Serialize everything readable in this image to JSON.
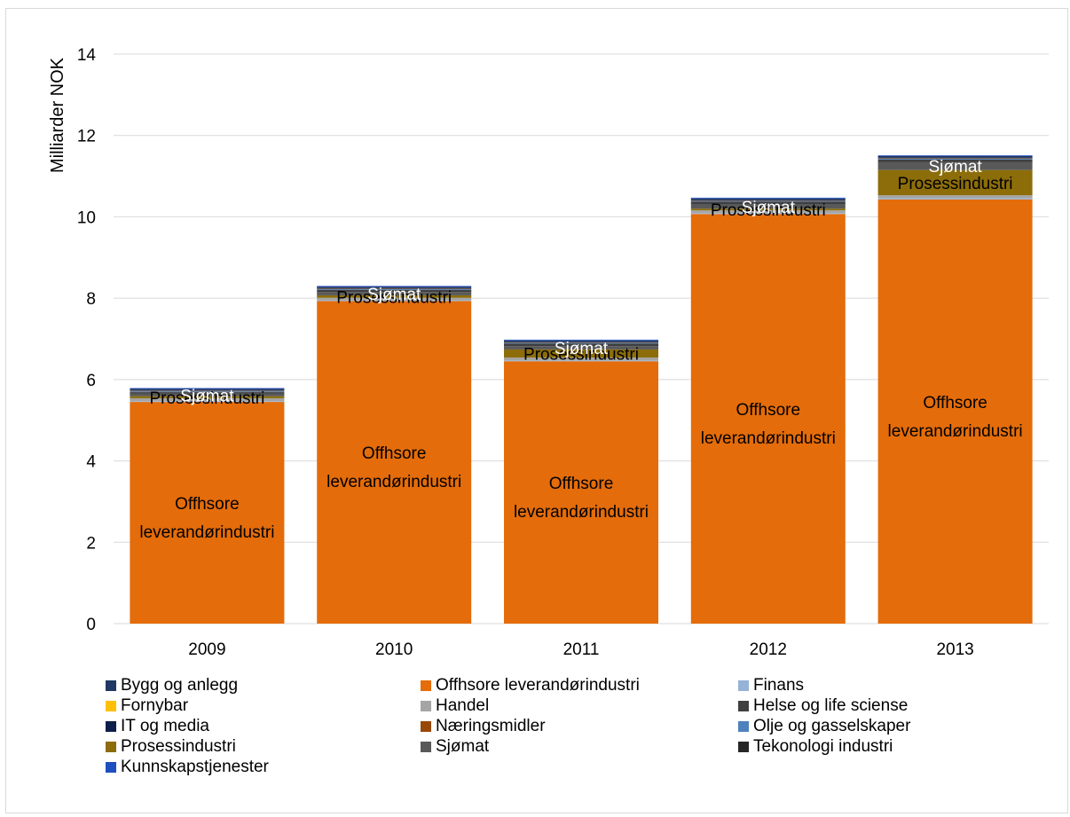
{
  "chart_data": {
    "type": "bar",
    "stacked": true,
    "ylabel": "Milliarder NOK",
    "xlabel": "",
    "ylim": [
      0,
      14
    ],
    "yticks": [
      0,
      2,
      4,
      6,
      8,
      10,
      12,
      14
    ],
    "grid": true,
    "legend_position": "bottom",
    "categories": [
      "2009",
      "2010",
      "2011",
      "2012",
      "2013"
    ],
    "series": [
      {
        "name": "Offhsore leverandørindustri",
        "color": "#e46c0a",
        "values": [
          5.45,
          7.93,
          6.45,
          10.07,
          10.43
        ]
      },
      {
        "name": "Finans",
        "color": "#95b3d7",
        "values": [
          0.02,
          0.02,
          0.02,
          0.02,
          0.03
        ]
      },
      {
        "name": "Handel",
        "color": "#a5a5a5",
        "values": [
          0.07,
          0.06,
          0.07,
          0.07,
          0.07
        ]
      },
      {
        "name": "Prosessindustri",
        "color": "#8c6d0a",
        "values": [
          0.05,
          0.06,
          0.2,
          0.04,
          0.62
        ]
      },
      {
        "name": "Sjømat",
        "color": "#595959",
        "values": [
          0.06,
          0.08,
          0.08,
          0.1,
          0.2
        ]
      },
      {
        "name": "Helse og life sciense",
        "color": "#3f3f3f",
        "values": [
          0.04,
          0.05,
          0.06,
          0.07,
          0.06
        ]
      },
      {
        "name": "Olje og gasselskaper",
        "color": "#4f81bd",
        "values": [
          0.02,
          0.02,
          0.02,
          0.02,
          0.02
        ]
      },
      {
        "name": "Næringsmidler",
        "color": "#984807",
        "values": [
          0.01,
          0.01,
          0.01,
          0.01,
          0.01
        ]
      },
      {
        "name": "Tekonologi industri",
        "color": "#262626",
        "values": [
          0.01,
          0.01,
          0.01,
          0.01,
          0.01
        ]
      },
      {
        "name": "Bygg og anlegg",
        "color": "#1f3864",
        "values": [
          0.02,
          0.02,
          0.02,
          0.02,
          0.02
        ]
      },
      {
        "name": "IT og media",
        "color": "#0d1f4a",
        "values": [
          0.02,
          0.02,
          0.02,
          0.02,
          0.02
        ]
      },
      {
        "name": "Kunnskapstjenester",
        "color": "#1f4fbf",
        "values": [
          0.02,
          0.02,
          0.02,
          0.02,
          0.02
        ]
      },
      {
        "name": "Fornybar",
        "color": "#ffc000",
        "values": [
          0,
          0,
          0,
          0,
          0
        ]
      }
    ],
    "data_labels": [
      {
        "series": "Offhsore leverandørindustri",
        "text_line1": "Offhsore",
        "text_line2": "leverandørindustri",
        "color": "#000000"
      },
      {
        "series": "Prosessindustri",
        "text": "Prosessindustri",
        "color": "#000000"
      },
      {
        "series": "Sjømat",
        "text": "Sjømat",
        "color": "#ffffff"
      }
    ],
    "legend": [
      "Bygg og anlegg",
      "Offhsore leverandørindustri",
      "Finans",
      "Fornybar",
      "Handel",
      "Helse og life sciense",
      "IT og media",
      "Næringsmidler",
      "Olje og gasselskaper",
      "Prosessindustri",
      "Sjømat",
      "Tekonologi industri",
      "Kunnskapstjenester"
    ]
  }
}
